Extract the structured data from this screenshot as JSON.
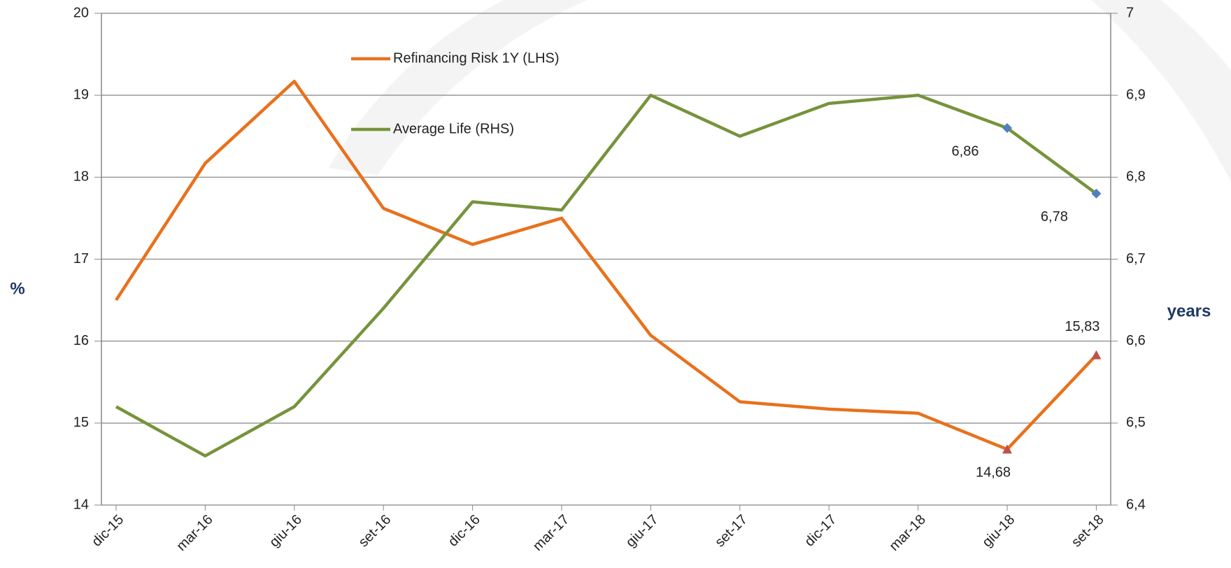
{
  "chart_data": {
    "type": "line",
    "categories": [
      "dic-15",
      "mar-16",
      "giu-16",
      "set-16",
      "dic-16",
      "mar-17",
      "giu-17",
      "set-17",
      "dic-17",
      "mar-18",
      "giu-18",
      "set-18"
    ],
    "series": [
      {
        "name": "Refinancing Risk 1Y (LHS)",
        "color": "#e8711c",
        "marker_color": "#c0504d",
        "marker": "triangle",
        "axis": "y",
        "values": [
          16.5,
          18.17,
          19.17,
          17.62,
          17.18,
          17.5,
          16.07,
          15.26,
          15.17,
          15.12,
          14.68,
          15.83
        ],
        "value_labels": [
          null,
          null,
          null,
          null,
          null,
          null,
          null,
          null,
          null,
          null,
          "14,68",
          "15,83"
        ]
      },
      {
        "name": "Average Life (RHS)",
        "color": "#77933c",
        "marker_color": "#4f81bd",
        "marker": "diamond",
        "axis": "y2",
        "values": [
          6.52,
          6.46,
          6.52,
          6.64,
          6.77,
          6.76,
          6.9,
          6.85,
          6.89,
          6.9,
          6.86,
          6.78
        ],
        "value_labels": [
          null,
          null,
          null,
          null,
          null,
          null,
          null,
          null,
          null,
          null,
          "6,86",
          "6,78"
        ]
      }
    ],
    "ylabel": "%",
    "y2label": "years",
    "ylim": [
      14,
      20
    ],
    "yticks": [
      14,
      15,
      16,
      17,
      18,
      19,
      20
    ],
    "y2lim": [
      6.4,
      7
    ],
    "y2ticks": [
      {
        "value": 6.4,
        "label": "6,4"
      },
      {
        "value": 6.5,
        "label": "6,5"
      },
      {
        "value": 6.6,
        "label": "6,6"
      },
      {
        "value": 6.7,
        "label": "6,7"
      },
      {
        "value": 6.8,
        "label": "6,8"
      },
      {
        "value": 6.9,
        "label": "6,9"
      },
      7
    ],
    "grid": true
  }
}
